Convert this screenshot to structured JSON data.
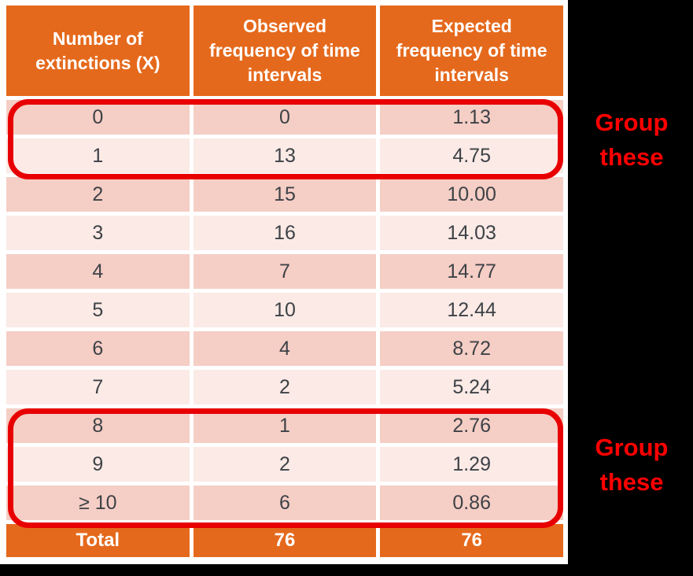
{
  "colors": {
    "header_orange": "#E5691C",
    "row_band_dark": "#F5CEC5",
    "row_band_light": "#FBEAE6",
    "cell_text": "#3E4247",
    "annotation_red": "#FF0000",
    "group_box_red": "#E80000",
    "background": "#000000",
    "card_white": "#FFFFFF"
  },
  "chart_data": {
    "type": "table",
    "columns": [
      "Number of extinctions (X)",
      "Observed frequency of time intervals",
      "Expected frequency of time intervals"
    ],
    "rows": [
      [
        "0",
        "0",
        "1.13"
      ],
      [
        "1",
        "13",
        "4.75"
      ],
      [
        "2",
        "15",
        "10.00"
      ],
      [
        "3",
        "16",
        "14.03"
      ],
      [
        "4",
        "7",
        "14.77"
      ],
      [
        "5",
        "10",
        "12.44"
      ],
      [
        "6",
        "4",
        "8.72"
      ],
      [
        "7",
        "2",
        "5.24"
      ],
      [
        "8",
        "1",
        "2.76"
      ],
      [
        "9",
        "2",
        "1.29"
      ],
      [
        "≥ 10",
        "6",
        "0.86"
      ]
    ],
    "total_row": [
      "Total",
      "76",
      "76"
    ],
    "annotations": [
      {
        "text": "Group these",
        "applies_to_rows": [
          "0",
          "1"
        ]
      },
      {
        "text": "Group these",
        "applies_to_rows": [
          "8",
          "9",
          "≥ 10"
        ]
      }
    ]
  }
}
